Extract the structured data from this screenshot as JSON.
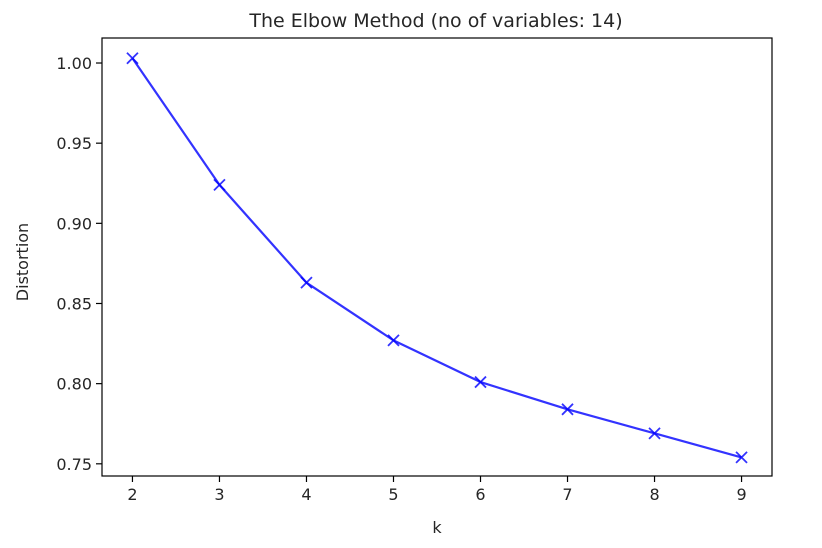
{
  "chart_data": {
    "type": "line",
    "title": "The Elbow Method (no of variables: 14)",
    "xlabel": "k",
    "ylabel": "Distortion",
    "x": [
      2,
      3,
      4,
      5,
      6,
      7,
      8,
      9
    ],
    "series": [
      {
        "values": [
          1.003,
          0.924,
          0.863,
          0.827,
          0.801,
          0.784,
          0.769,
          0.754
        ],
        "color": "#0000ff",
        "marker": "x"
      }
    ],
    "xticks": [
      "2",
      "3",
      "4",
      "5",
      "6",
      "7",
      "8",
      "9"
    ],
    "yticks": [
      "0.75",
      "0.80",
      "0.85",
      "0.90",
      "0.95",
      "1.00"
    ],
    "xlim": [
      1.65,
      9.35
    ],
    "ylim": [
      0.7424,
      1.0156
    ],
    "grid": false,
    "legend": "none"
  }
}
